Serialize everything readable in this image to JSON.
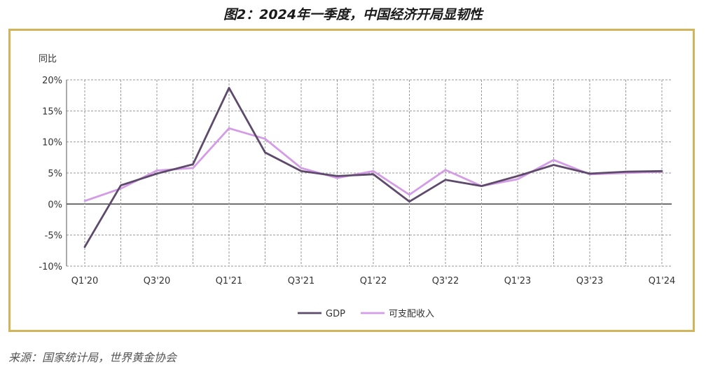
{
  "title": "图2：2024年一季度，中国经济开局显韧性",
  "source": "来源：国家统计局，世界黄金协会",
  "colors": {
    "gdp": "#5e4a6b",
    "income": "#d49be6",
    "border": "#d4b45a",
    "grid": "#9a9a9a"
  },
  "chart_data": {
    "type": "line",
    "ylabel": "同比",
    "ylim": [
      -10,
      20
    ],
    "yticks": [
      20,
      15,
      10,
      5,
      0,
      -5,
      -10
    ],
    "ytick_labels": [
      "20%",
      "15%",
      "10%",
      "5%",
      "0%",
      "-5%",
      "-10%"
    ],
    "x": [
      "Q1'20",
      "Q2'20",
      "Q3'20",
      "Q4'20",
      "Q1'21",
      "Q2'21",
      "Q3'21",
      "Q4'21",
      "Q1'22",
      "Q2'22",
      "Q3'22",
      "Q4'22",
      "Q1'23",
      "Q2'23",
      "Q3'23",
      "Q4'23",
      "Q1'24"
    ],
    "xtick_labels": [
      "Q1'20",
      "Q3'20",
      "Q1'21",
      "Q3'21",
      "Q1'22",
      "Q3'22",
      "Q1'23",
      "Q3'23",
      "Q1'24"
    ],
    "grid": true,
    "legend": "bottom",
    "series": [
      {
        "name": "GDP",
        "values": [
          -6.9,
          3.0,
          4.9,
          6.4,
          18.7,
          8.3,
          5.3,
          4.5,
          4.8,
          0.4,
          3.9,
          2.9,
          4.5,
          6.3,
          4.9,
          5.2,
          5.3
        ]
      },
      {
        "name": "可支配收入",
        "values": [
          0.5,
          2.5,
          5.4,
          5.8,
          12.2,
          10.5,
          5.8,
          4.2,
          5.3,
          1.5,
          5.5,
          2.9,
          4.0,
          7.1,
          4.8,
          5.0,
          5.2
        ]
      }
    ]
  }
}
